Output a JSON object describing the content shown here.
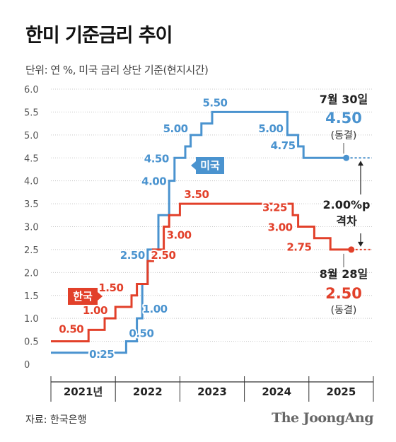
{
  "title": "한미 기준금리 추이",
  "unit_note": "단위: 연 %, 미국 금리 상단 기준(현지시간)",
  "source": "자료: 한국은행",
  "brand": "The JoongAng",
  "colors": {
    "us": "#4a93cf",
    "kr": "#e2402a",
    "grid": "#c8c8c8",
    "axis": "#333333"
  },
  "chart_data": {
    "type": "line",
    "step": true,
    "x_ticks": [
      "2021년",
      "2022",
      "2023",
      "2024",
      "2025"
    ],
    "ylim": [
      0,
      6.0
    ],
    "y_ticks": [
      "0",
      "0.5",
      "1.0",
      "1.5",
      "2.0",
      "2.5",
      "3.0",
      "3.5",
      "4.0",
      "4.5",
      "5.0",
      "5.5",
      "6.0"
    ],
    "grid": true,
    "series": [
      {
        "name": "미국",
        "color": "#4a93cf",
        "points": [
          [
            "2021-01",
            0.25
          ],
          [
            "2022-03",
            0.5
          ],
          [
            "2022-05",
            1.0
          ],
          [
            "2022-06",
            1.75
          ],
          [
            "2022-07",
            2.5
          ],
          [
            "2022-09",
            3.25
          ],
          [
            "2022-11",
            4.0
          ],
          [
            "2022-12",
            4.5
          ],
          [
            "2023-02",
            4.75
          ],
          [
            "2023-03",
            5.0
          ],
          [
            "2023-05",
            5.25
          ],
          [
            "2023-07",
            5.5
          ],
          [
            "2024-09",
            5.0
          ],
          [
            "2024-11",
            4.75
          ],
          [
            "2024-12",
            4.5
          ],
          [
            "2025-07-30",
            4.5
          ]
        ],
        "labels": [
          {
            "text": "0.25",
            "x": "2022-01",
            "y": 0.25
          },
          {
            "text": "0.50",
            "x": "2022-03",
            "y": 0.5
          },
          {
            "text": "1.00",
            "x": "2022-05",
            "y": 1.0
          },
          {
            "text": "2.50",
            "x": "2022-07",
            "y": 2.5
          },
          {
            "text": "4.00",
            "x": "2022-11",
            "y": 4.0
          },
          {
            "text": "4.50",
            "x": "2022-12",
            "y": 4.5
          },
          {
            "text": "5.00",
            "x": "2023-03",
            "y": 5.0
          },
          {
            "text": "5.50",
            "x": "2023-07",
            "y": 5.5
          },
          {
            "text": "5.00",
            "x": "2024-09",
            "y": 5.0
          },
          {
            "text": "4.75",
            "x": "2024-11",
            "y": 4.75
          }
        ]
      },
      {
        "name": "한국",
        "color": "#e2402a",
        "points": [
          [
            "2021-01",
            0.5
          ],
          [
            "2021-08",
            0.75
          ],
          [
            "2021-11",
            1.0
          ],
          [
            "2022-01",
            1.25
          ],
          [
            "2022-04",
            1.5
          ],
          [
            "2022-05",
            1.75
          ],
          [
            "2022-07",
            2.25
          ],
          [
            "2022-08",
            2.5
          ],
          [
            "2022-10",
            3.0
          ],
          [
            "2022-11",
            3.25
          ],
          [
            "2023-01",
            3.5
          ],
          [
            "2024-10",
            3.25
          ],
          [
            "2024-11",
            3.0
          ],
          [
            "2025-02",
            2.75
          ],
          [
            "2025-05",
            2.5
          ],
          [
            "2025-08-28",
            2.5
          ]
        ],
        "labels": [
          {
            "text": "0.50",
            "x": "2021-03",
            "y": 0.5
          },
          {
            "text": "1.00",
            "x": "2021-10",
            "y": 1.0
          },
          {
            "text": "1.50",
            "x": "2022-03",
            "y": 1.5
          },
          {
            "text": "2.50",
            "x": "2022-08",
            "y": 2.5
          },
          {
            "text": "3.00",
            "x": "2022-10",
            "y": 3.0
          },
          {
            "text": "3.50",
            "x": "2023-01",
            "y": 3.5
          },
          {
            "text": "3.25",
            "x": "2024-10",
            "y": 3.25
          },
          {
            "text": "3.00",
            "x": "2024-11",
            "y": 3.0
          },
          {
            "text": "2.75",
            "x": "2025-02",
            "y": 2.75
          }
        ]
      }
    ],
    "legend_tags": [
      {
        "series": "미국",
        "text": "미국"
      },
      {
        "series": "한국",
        "text": "한국"
      }
    ],
    "annotations": {
      "us_end": {
        "date": "7월 30일",
        "value": "4.50",
        "note": "(동결)"
      },
      "kr_end": {
        "date": "8월 28일",
        "value": "2.50",
        "note": "(동결)"
      },
      "gap": {
        "line1": "2.00%p",
        "line2": "격차"
      }
    }
  }
}
